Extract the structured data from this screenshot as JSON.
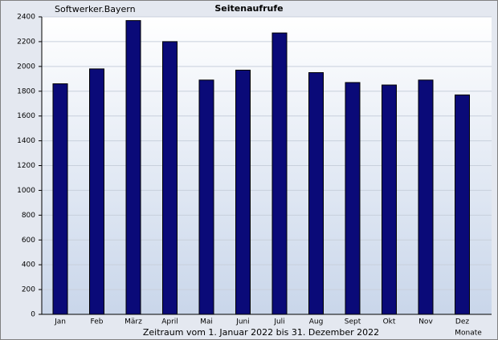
{
  "chart_data": {
    "type": "bar",
    "title": "Seitenaufrufe",
    "subtitle": "Softwerker.Bayern",
    "x_label": "Zeitraum vom 1. Januar 2022 bis 31. Dezember 2022",
    "x_unit": "Monate",
    "categories": [
      "Jan",
      "Feb",
      "März",
      "April",
      "Mai",
      "Juni",
      "Juli",
      "Aug",
      "Sept",
      "Okt",
      "Nov",
      "Dez"
    ],
    "values": [
      1860,
      1980,
      2370,
      2200,
      1890,
      1970,
      2270,
      1950,
      1870,
      1850,
      1890,
      1770
    ],
    "color": "#0a0a78",
    "ylim": [
      0,
      2400
    ],
    "yticks": [
      0,
      200,
      400,
      600,
      800,
      1000,
      1200,
      1400,
      1600,
      1800,
      2000,
      2200,
      2400
    ],
    "grid": true
  }
}
